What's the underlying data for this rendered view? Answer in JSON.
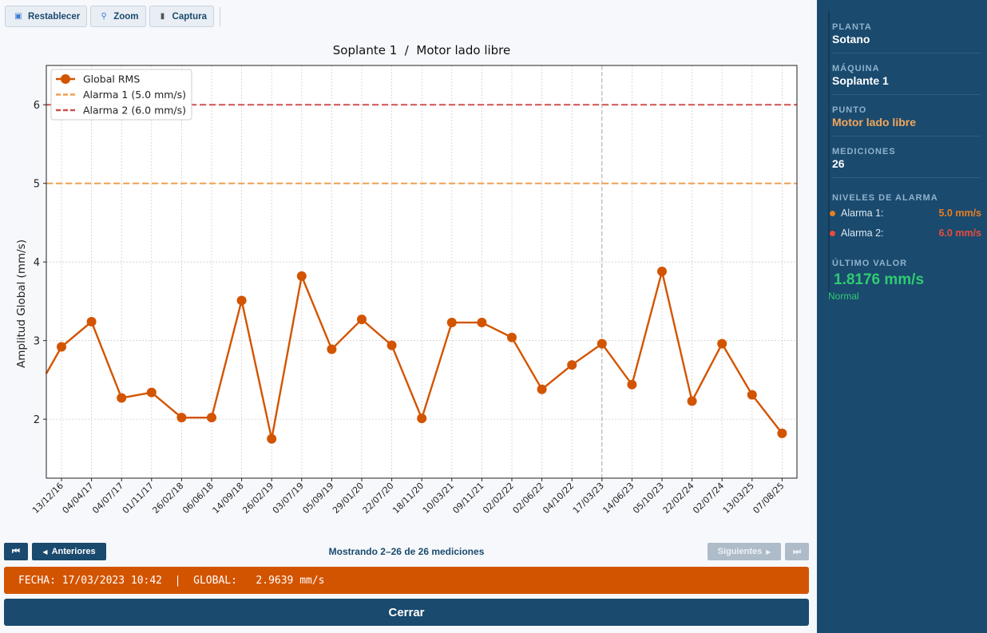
{
  "toolbar": {
    "reset_label": "Restablecer",
    "zoom_label": "Zoom",
    "capture_label": "Captura"
  },
  "chart_data": {
    "type": "line",
    "title": "Soplante 1  /  Motor lado libre",
    "ylabel": "Amplitud Global (mm/s)",
    "xlabel": "",
    "ylim": [
      1.25,
      6.5
    ],
    "yticks": [
      2,
      3,
      4,
      5,
      6
    ],
    "grid": true,
    "legend_position": "top-left",
    "categories": [
      "13/12/16",
      "04/04/17",
      "04/07/17",
      "01/11/17",
      "26/02/18",
      "06/06/18",
      "14/09/18",
      "26/02/19",
      "03/07/19",
      "05/09/19",
      "29/01/20",
      "22/07/20",
      "18/11/20",
      "10/03/21",
      "09/11/21",
      "02/02/22",
      "02/06/22",
      "04/10/22",
      "17/03/23",
      "14/06/23",
      "05/10/23",
      "22/02/24",
      "02/07/24",
      "13/03/25",
      "07/08/25"
    ],
    "series": [
      {
        "name": "Global RMS",
        "color": "#d35400",
        "values": [
          2.92,
          3.24,
          2.27,
          2.34,
          2.02,
          2.02,
          3.51,
          1.75,
          3.82,
          2.89,
          3.27,
          2.94,
          2.01,
          3.23,
          3.23,
          3.04,
          2.38,
          2.69,
          2.96,
          2.44,
          3.88,
          2.23,
          2.96,
          2.31,
          1.82
        ]
      }
    ],
    "partial_left_value": 2.58,
    "thresholds": [
      {
        "name": "Alarma 1 (5.0 mm/s)",
        "value": 5.0,
        "color": "#f0a050"
      },
      {
        "name": "Alarma 2 (6.0 mm/s)",
        "value": 6.0,
        "color": "#d05050"
      }
    ],
    "selected_category": "17/03/23"
  },
  "pager": {
    "first_label": "⏮",
    "prev_label": "Anteriores",
    "info": "Mostrando 2–26 de 26 mediciones",
    "next_label": "Siguientes",
    "last_label": "⏭"
  },
  "infobar": {
    "text": "FECHA: 17/03/2023 10:42  |  GLOBAL:   2.9639 mm/s"
  },
  "close_label": "Cerrar",
  "sidebar": {
    "plant_label": "PLANTA",
    "plant_value": "Sotano",
    "machine_label": "MÁQUINA",
    "machine_value": "Soplante 1",
    "point_label": "PUNTO",
    "point_value": "Motor lado libre",
    "point_color": "#f5a65b",
    "measurements_label": "MEDICIONES",
    "measurements_value": "26",
    "alarm_levels_label": "NIVELES DE ALARMA",
    "alarm1_label": "Alarma 1:",
    "alarm1_value": "5.0 mm/s",
    "alarm1_color": "#e67e22",
    "alarm2_label": "Alarma 2:",
    "alarm2_value": "6.0 mm/s",
    "alarm2_color": "#e74c3c",
    "last_value_label": "ÚLTIMO VALOR",
    "last_value": "1.8176 mm/s",
    "last_status": "Normal"
  }
}
